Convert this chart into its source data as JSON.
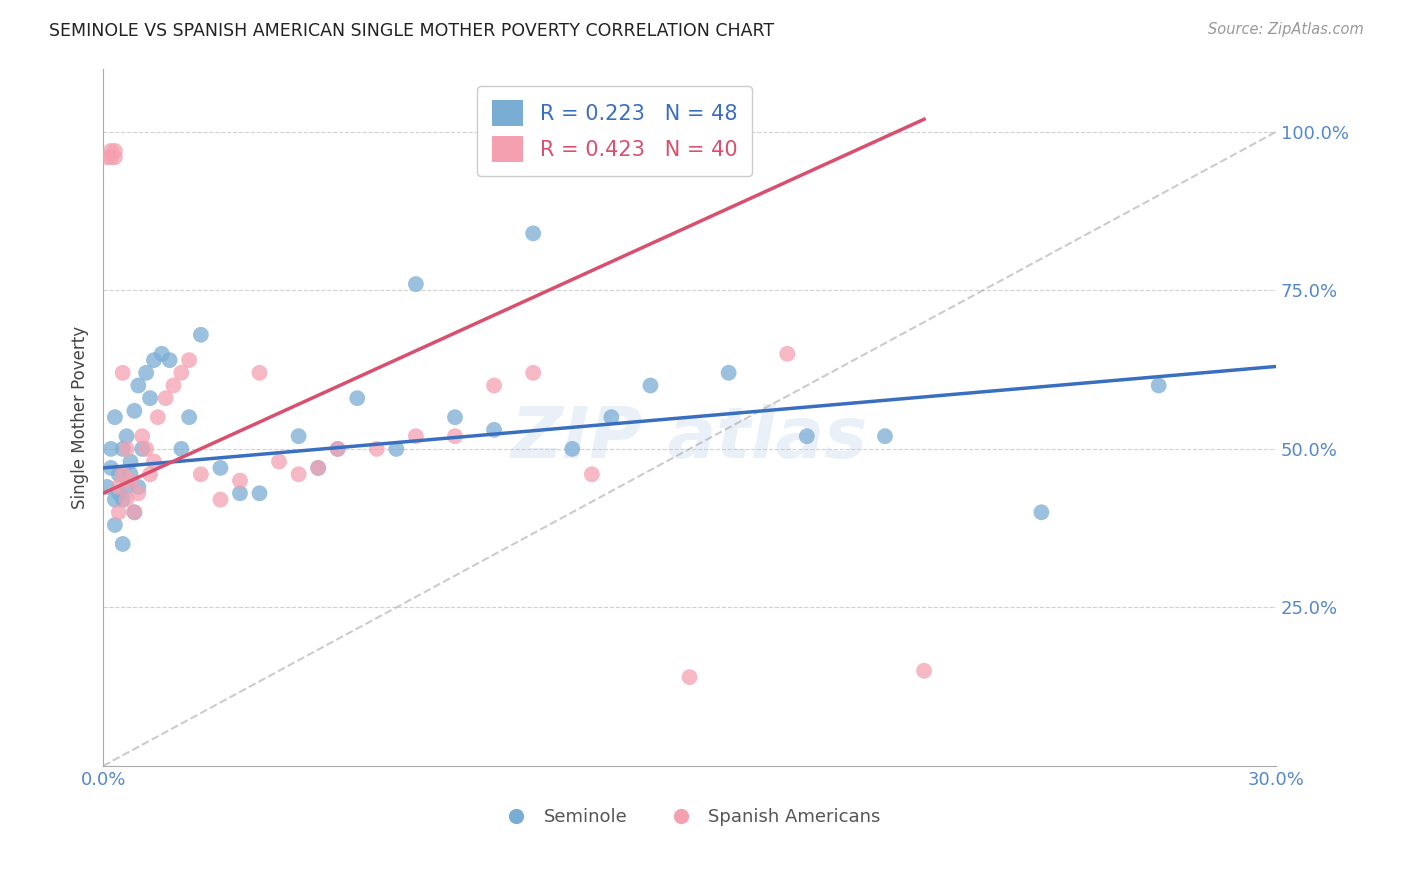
{
  "title": "SEMINOLE VS SPANISH AMERICAN SINGLE MOTHER POVERTY CORRELATION CHART",
  "source": "Source: ZipAtlas.com",
  "ylabel": "Single Mother Poverty",
  "xlim": [
    0.0,
    0.3
  ],
  "ylim": [
    0.0,
    1.1
  ],
  "yticks": [
    0.25,
    0.5,
    0.75,
    1.0
  ],
  "ytick_labels": [
    "25.0%",
    "50.0%",
    "75.0%",
    "100.0%"
  ],
  "xticks": [
    0.0,
    0.05,
    0.1,
    0.15,
    0.2,
    0.25,
    0.3
  ],
  "xtick_labels": [
    "0.0%",
    "",
    "",
    "",
    "",
    "",
    "30.0%"
  ],
  "legend_blue_label": "R = 0.223   N = 48",
  "legend_pink_label": "R = 0.423   N = 40",
  "legend_label_seminole": "Seminole",
  "legend_label_spanish": "Spanish Americans",
  "blue_color": "#7aadd4",
  "pink_color": "#f4a0b0",
  "blue_line_color": "#3a6fbf",
  "pink_line_color": "#d94f6e",
  "axis_color": "#5588cc",
  "grid_color": "#cccccc",
  "seminole_x": [
    0.001,
    0.002,
    0.002,
    0.003,
    0.003,
    0.003,
    0.004,
    0.004,
    0.005,
    0.005,
    0.005,
    0.006,
    0.006,
    0.007,
    0.007,
    0.008,
    0.008,
    0.009,
    0.009,
    0.01,
    0.011,
    0.012,
    0.013,
    0.015,
    0.017,
    0.02,
    0.022,
    0.025,
    0.03,
    0.035,
    0.04,
    0.05,
    0.055,
    0.06,
    0.065,
    0.075,
    0.08,
    0.09,
    0.1,
    0.11,
    0.12,
    0.13,
    0.14,
    0.16,
    0.18,
    0.2,
    0.24,
    0.27
  ],
  "seminole_y": [
    0.44,
    0.47,
    0.5,
    0.38,
    0.42,
    0.55,
    0.43,
    0.46,
    0.35,
    0.42,
    0.5,
    0.44,
    0.52,
    0.46,
    0.48,
    0.4,
    0.56,
    0.44,
    0.6,
    0.5,
    0.62,
    0.58,
    0.64,
    0.65,
    0.64,
    0.5,
    0.55,
    0.68,
    0.47,
    0.43,
    0.43,
    0.52,
    0.47,
    0.5,
    0.58,
    0.5,
    0.76,
    0.55,
    0.53,
    0.84,
    0.5,
    0.55,
    0.6,
    0.62,
    0.52,
    0.52,
    0.4,
    0.6
  ],
  "spanish_x": [
    0.001,
    0.002,
    0.002,
    0.003,
    0.003,
    0.004,
    0.004,
    0.005,
    0.005,
    0.006,
    0.006,
    0.007,
    0.008,
    0.009,
    0.01,
    0.011,
    0.012,
    0.013,
    0.014,
    0.016,
    0.018,
    0.02,
    0.022,
    0.025,
    0.03,
    0.035,
    0.04,
    0.045,
    0.05,
    0.055,
    0.06,
    0.07,
    0.08,
    0.09,
    0.1,
    0.11,
    0.125,
    0.15,
    0.175,
    0.21
  ],
  "spanish_y": [
    0.96,
    0.96,
    0.97,
    0.96,
    0.97,
    0.4,
    0.44,
    0.46,
    0.62,
    0.42,
    0.5,
    0.45,
    0.4,
    0.43,
    0.52,
    0.5,
    0.46,
    0.48,
    0.55,
    0.58,
    0.6,
    0.62,
    0.64,
    0.46,
    0.42,
    0.45,
    0.62,
    0.48,
    0.46,
    0.47,
    0.5,
    0.5,
    0.52,
    0.52,
    0.6,
    0.62,
    0.46,
    0.14,
    0.65,
    0.15
  ]
}
